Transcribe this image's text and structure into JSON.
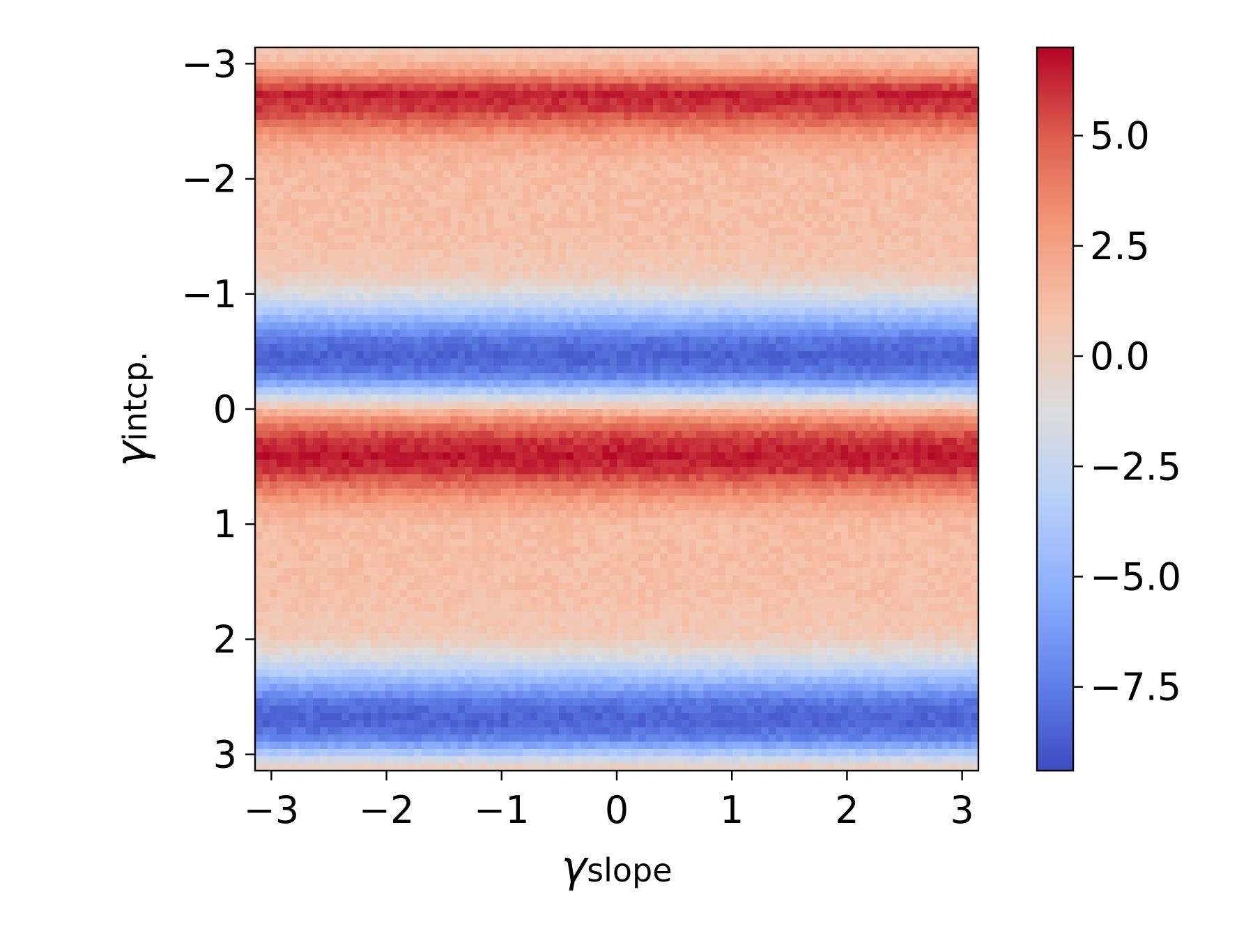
{
  "chart_data": {
    "type": "heatmap",
    "title": "",
    "xlabel": {
      "symbol": "γ",
      "subscript": "slope"
    },
    "ylabel": {
      "symbol": "γ",
      "subscript": "intcp."
    },
    "xlim": [
      -3.1416,
      3.1416
    ],
    "ylim": [
      3.1416,
      -3.1416
    ],
    "y_axis_inverted": true,
    "grid": false,
    "x_ticks": [
      {
        "value": -3,
        "label": "−3"
      },
      {
        "value": -2,
        "label": "−2"
      },
      {
        "value": -1,
        "label": "−1"
      },
      {
        "value": 0,
        "label": "0"
      },
      {
        "value": 1,
        "label": "1"
      },
      {
        "value": 2,
        "label": "2"
      },
      {
        "value": 3,
        "label": "3"
      }
    ],
    "y_ticks": [
      {
        "value": -3,
        "label": "−3"
      },
      {
        "value": -2,
        "label": "−2"
      },
      {
        "value": -1,
        "label": "−1"
      },
      {
        "value": 0,
        "label": "0"
      },
      {
        "value": 1,
        "label": "1"
      },
      {
        "value": 2,
        "label": "2"
      },
      {
        "value": 3,
        "label": "3"
      }
    ],
    "grid_size": [
      100,
      100
    ],
    "colormap": "coolwarm",
    "colormap_stops": [
      "#3b4cc0",
      "#6282ea",
      "#8db0fe",
      "#b8d0f9",
      "#dddddd",
      "#f5c4ac",
      "#f49a7b",
      "#dd604e",
      "#b40426"
    ],
    "value_range": [
      -9.4,
      7.0
    ],
    "colorbar": {
      "position": "right",
      "ticks": [
        {
          "value": 5.0,
          "label": "5.0"
        },
        {
          "value": 2.5,
          "label": "2.5"
        },
        {
          "value": 0.0,
          "label": "0.0"
        },
        {
          "value": -2.5,
          "label": "−2.5"
        },
        {
          "value": -5.0,
          "label": "−5.0"
        },
        {
          "value": -7.5,
          "label": "−7.5"
        }
      ]
    },
    "profile_note": "values are constant along γ_slope (plus small noise) and vary with γ_intcp.",
    "row_profile": [
      {
        "y": -3.14,
        "value": 0.3
      },
      {
        "y": -3.0,
        "value": 1.5
      },
      {
        "y": -2.9,
        "value": 3.5
      },
      {
        "y": -2.75,
        "value": 6.4
      },
      {
        "y": -2.6,
        "value": 5.8
      },
      {
        "y": -2.45,
        "value": 3.8
      },
      {
        "y": -2.3,
        "value": 2.2
      },
      {
        "y": -2.1,
        "value": 1.3
      },
      {
        "y": -1.5,
        "value": 1.0
      },
      {
        "y": -1.2,
        "value": 0.5
      },
      {
        "y": -1.05,
        "value": -0.8
      },
      {
        "y": -0.9,
        "value": -2.8
      },
      {
        "y": -0.75,
        "value": -5.5
      },
      {
        "y": -0.6,
        "value": -7.8
      },
      {
        "y": -0.45,
        "value": -8.6
      },
      {
        "y": -0.3,
        "value": -7.5
      },
      {
        "y": -0.2,
        "value": -5.0
      },
      {
        "y": -0.1,
        "value": -2.0
      },
      {
        "y": 0.0,
        "value": 1.0
      },
      {
        "y": 0.1,
        "value": 3.5
      },
      {
        "y": 0.25,
        "value": 5.8
      },
      {
        "y": 0.4,
        "value": 6.6
      },
      {
        "y": 0.55,
        "value": 5.8
      },
      {
        "y": 0.7,
        "value": 3.8
      },
      {
        "y": 0.85,
        "value": 2.2
      },
      {
        "y": 1.0,
        "value": 1.3
      },
      {
        "y": 1.6,
        "value": 1.0
      },
      {
        "y": 1.95,
        "value": 0.5
      },
      {
        "y": 2.1,
        "value": -0.8
      },
      {
        "y": 2.25,
        "value": -2.8
      },
      {
        "y": 2.4,
        "value": -5.5
      },
      {
        "y": 2.55,
        "value": -7.8
      },
      {
        "y": 2.7,
        "value": -8.6
      },
      {
        "y": 2.85,
        "value": -7.5
      },
      {
        "y": 2.95,
        "value": -5.0
      },
      {
        "y": 3.05,
        "value": -2.0
      },
      {
        "y": 3.14,
        "value": 0.8
      }
    ]
  }
}
